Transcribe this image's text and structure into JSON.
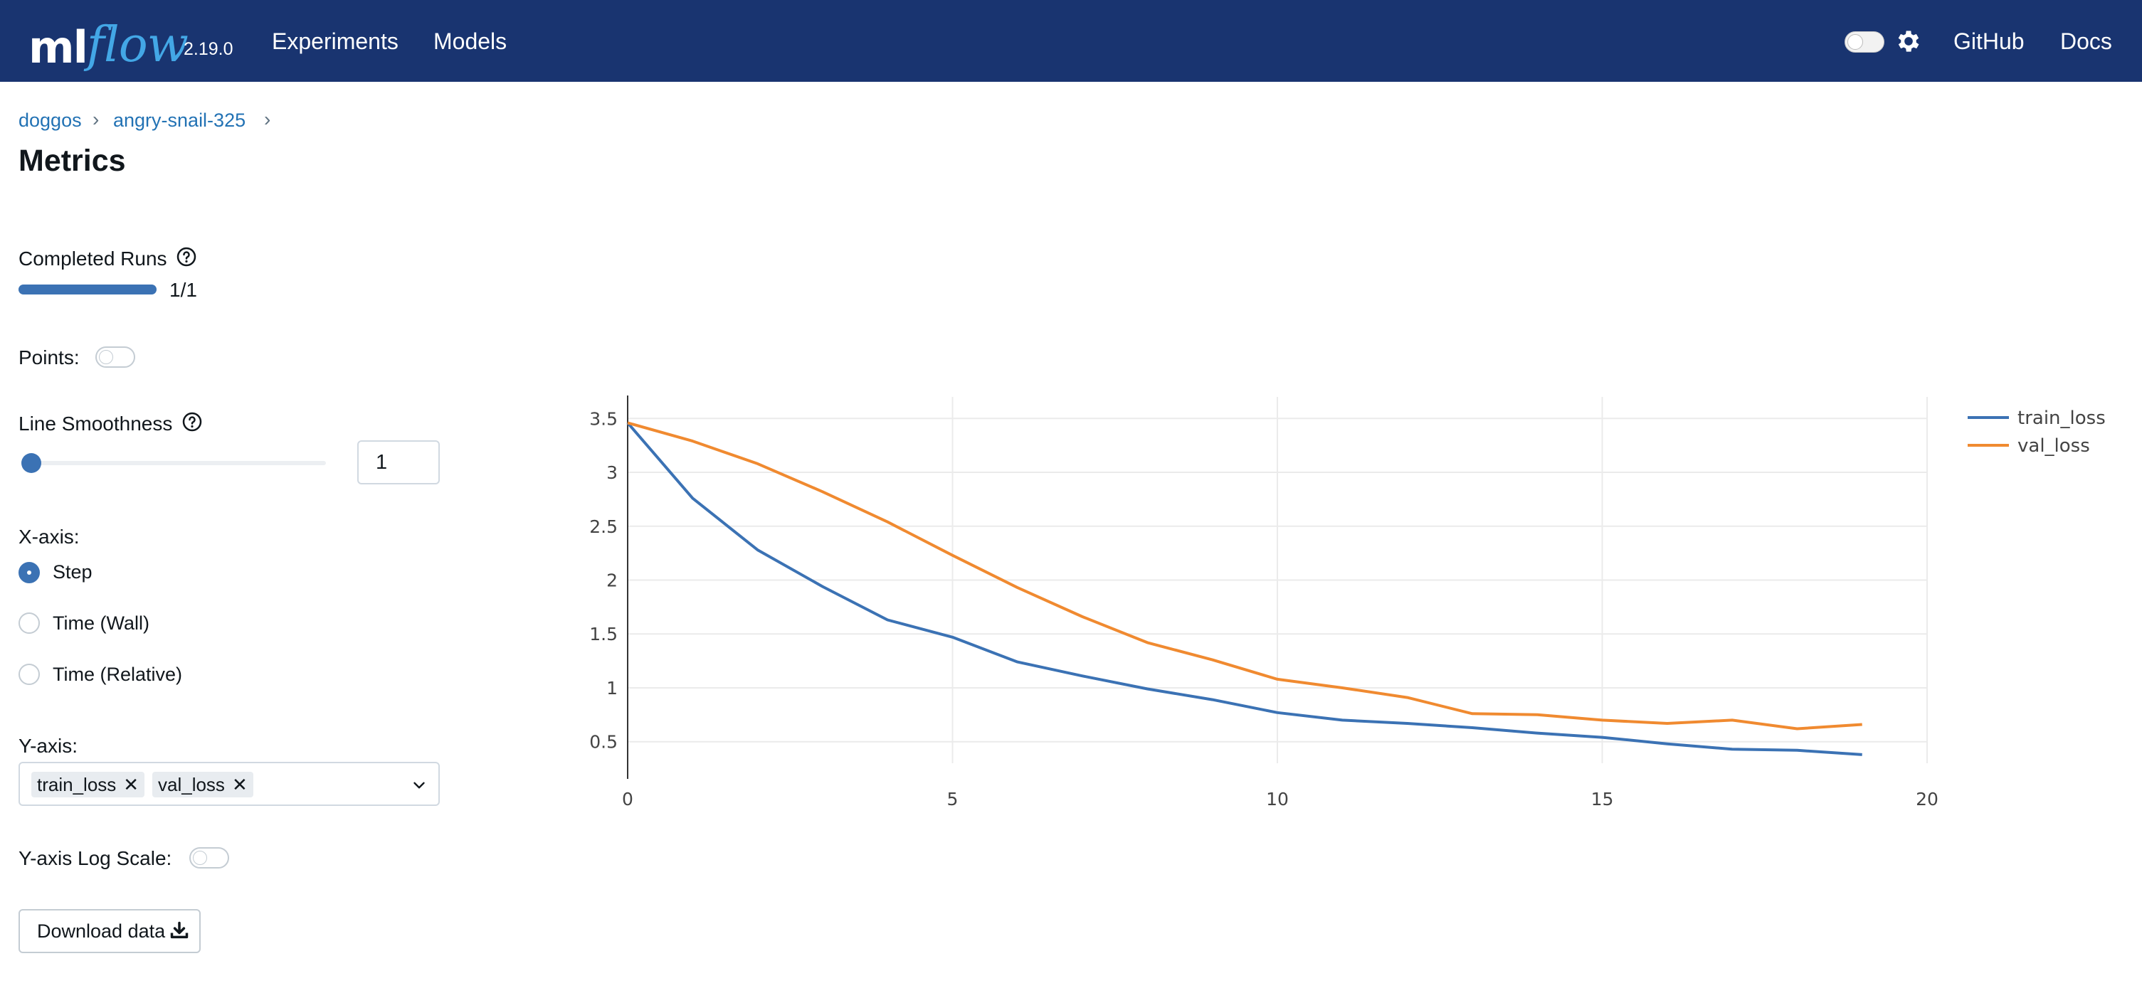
{
  "header": {
    "logo_ml": "ml",
    "logo_flow": "flow",
    "version": "2.19.0",
    "nav": [
      "Experiments",
      "Models"
    ],
    "right_links": [
      "GitHub",
      "Docs"
    ],
    "icons": [
      "dark-mode-toggle",
      "gear-icon"
    ]
  },
  "breadcrumb": [
    "doggos",
    "angry-snail-325"
  ],
  "page": {
    "title": "Metrics"
  },
  "controls": {
    "completed_runs_label": "Completed Runs",
    "completed_runs_value": "1/1",
    "completed_runs_fraction": 1.0,
    "points_label": "Points:",
    "points_enabled": false,
    "smoothness_label": "Line Smoothness",
    "smoothness_value": "1",
    "smoothness_fraction": 0.0,
    "xaxis_label": "X-axis:",
    "xaxis_options": [
      "Step",
      "Time (Wall)",
      "Time (Relative)"
    ],
    "xaxis_selected": "Step",
    "yaxis_label": "Y-axis:",
    "yaxis_selected": [
      "train_loss",
      "val_loss"
    ],
    "log_scale_label": "Y-axis Log Scale:",
    "log_scale_enabled": false,
    "download_label": "Download data"
  },
  "chart_data": {
    "type": "line",
    "xlim": [
      0,
      20
    ],
    "ylim": [
      0.3,
      3.7
    ],
    "xticks": [
      0,
      5,
      10,
      15,
      20
    ],
    "yticks": [
      0.5,
      1,
      1.5,
      2,
      2.5,
      3,
      3.5
    ],
    "legend_position": "top-right",
    "grid": true,
    "series": [
      {
        "name": "train_loss",
        "color": "#3b72b4",
        "x": [
          0,
          1,
          2,
          3,
          4,
          5,
          6,
          7,
          8,
          9,
          10,
          11,
          12,
          13,
          14,
          15,
          16,
          17,
          18,
          19
        ],
        "values": [
          3.46,
          2.76,
          2.28,
          1.94,
          1.63,
          1.47,
          1.24,
          1.11,
          0.99,
          0.89,
          0.77,
          0.7,
          0.67,
          0.63,
          0.58,
          0.54,
          0.48,
          0.43,
          0.42,
          0.38
        ]
      },
      {
        "name": "val_loss",
        "color": "#f08a30",
        "x": [
          0,
          1,
          2,
          3,
          4,
          5,
          6,
          7,
          8,
          9,
          10,
          11,
          12,
          13,
          14,
          15,
          16,
          17,
          18,
          19
        ],
        "values": [
          3.46,
          3.29,
          3.08,
          2.82,
          2.54,
          2.23,
          1.93,
          1.66,
          1.42,
          1.26,
          1.08,
          1.0,
          0.91,
          0.76,
          0.75,
          0.7,
          0.67,
          0.7,
          0.62,
          0.66
        ]
      }
    ]
  }
}
